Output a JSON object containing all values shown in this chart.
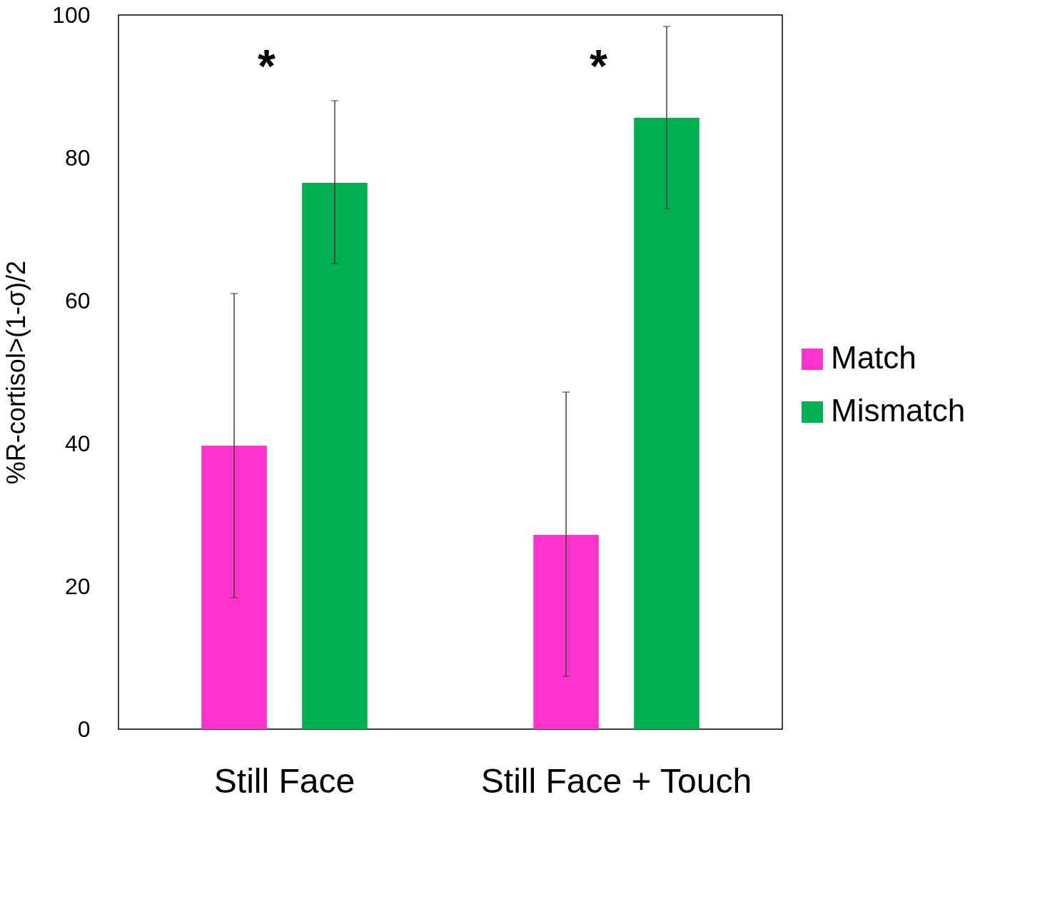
{
  "chart_data": {
    "type": "bar",
    "ylabel": "%R-cortisol>(1-σ)/2",
    "categories": [
      "Still Face",
      "Still Face + Touch"
    ],
    "series": [
      {
        "name": "Match",
        "color": "#ff33cc",
        "values": [
          39.7,
          27.2
        ],
        "errors": [
          [
            18.4,
            61.0
          ],
          [
            7.4,
            47.2
          ]
        ]
      },
      {
        "name": "Mismatch",
        "color": "#00b050",
        "values": [
          76.5,
          85.6
        ],
        "errors": [
          [
            65.2,
            88.0
          ],
          [
            72.9,
            98.4
          ]
        ]
      }
    ],
    "ylim": [
      0,
      100
    ],
    "yticks": [
      0,
      20,
      40,
      60,
      80,
      100
    ],
    "grid": false,
    "legend": "right",
    "annotations": [
      "*",
      "*"
    ]
  }
}
